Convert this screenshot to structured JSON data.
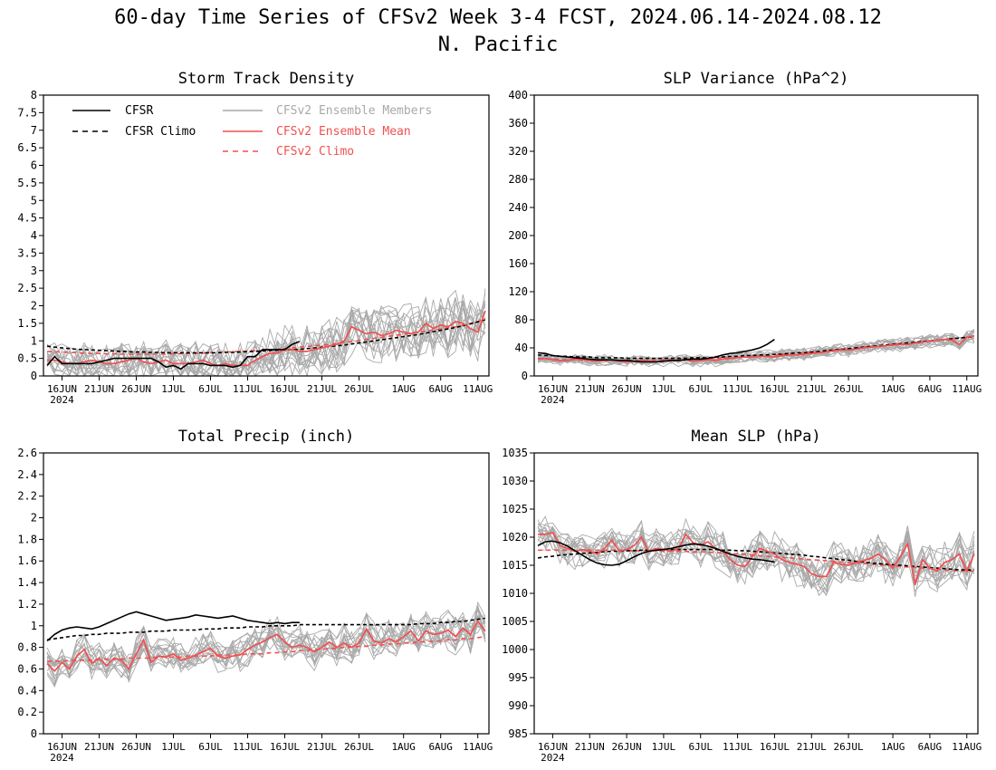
{
  "title": "60-day Time Series of CFSv2 Week 3-4 FCST, 2024.06.14-2024.08.12",
  "subtitle": "N. Pacific",
  "colors": {
    "cfsr": "#000000",
    "members": "#a9a9a9",
    "ens_mean": "#f05050",
    "cfsv2_climo": "#f05050"
  },
  "x_tick_labels": [
    "16JUN",
    "21JUN",
    "26JUN",
    "1JUL",
    "6JUL",
    "11JUL",
    "16JUL",
    "21JUL",
    "26JUL",
    "1AUG",
    "6AUG",
    "11AUG"
  ],
  "x_year_label": "2024",
  "legend": {
    "cfsr": "CFSR",
    "cfsr_climo": "CFSR Climo",
    "members": "CFSv2 Ensemble Members",
    "ens_mean": "CFSv2 Ensemble Mean",
    "cfsv2_climo": "CFSv2 Climo"
  },
  "chart_data": [
    {
      "type": "line",
      "title": "Storm Track Density",
      "x": "day index 0-59 (2024-06-14 to 2024-08-12)",
      "ylim": [
        0,
        8
      ],
      "yticks": [
        "0",
        "0.5",
        "1",
        "1.5",
        "2",
        "2.5",
        "3",
        "3.5",
        "4",
        "4.5",
        "5",
        "5.5",
        "6",
        "6.5",
        "7",
        "7.5",
        "8"
      ],
      "members_count": 16,
      "members_noise": 0.45,
      "members_noise_growth": 0.8,
      "cfsr": [
        0.3,
        0.55,
        0.35,
        0.35,
        0.35,
        0.35,
        0.35,
        0.4,
        0.45,
        0.5,
        0.5,
        0.5,
        0.5,
        0.5,
        0.5,
        0.4,
        0.25,
        0.3,
        0.2,
        0.35,
        0.35,
        0.35,
        0.3,
        0.3,
        0.3,
        0.25,
        0.3,
        0.55,
        0.55,
        0.75,
        0.75,
        0.75,
        0.75,
        0.9,
        0.98
      ],
      "cfsr_climo": [
        0.85,
        0.82,
        0.8,
        0.78,
        0.76,
        0.75,
        0.74,
        0.73,
        0.72,
        0.71,
        0.7,
        0.69,
        0.68,
        0.68,
        0.67,
        0.67,
        0.66,
        0.66,
        0.66,
        0.66,
        0.66,
        0.66,
        0.66,
        0.66,
        0.67,
        0.67,
        0.68,
        0.69,
        0.7,
        0.71,
        0.72,
        0.73,
        0.74,
        0.75,
        0.76,
        0.78,
        0.8,
        0.82,
        0.84,
        0.86,
        0.88,
        0.91,
        0.94,
        0.97,
        1.0,
        1.03,
        1.06,
        1.09,
        1.12,
        1.15,
        1.18,
        1.22,
        1.26,
        1.3,
        1.34,
        1.38,
        1.43,
        1.48,
        1.54,
        1.6
      ],
      "ens_mean": [
        0.45,
        0.45,
        0.4,
        0.35,
        0.35,
        0.4,
        0.45,
        0.4,
        0.35,
        0.35,
        0.4,
        0.45,
        0.5,
        0.4,
        0.35,
        0.4,
        0.45,
        0.35,
        0.35,
        0.35,
        0.4,
        0.45,
        0.35,
        0.3,
        0.35,
        0.3,
        0.3,
        0.3,
        0.45,
        0.55,
        0.65,
        0.65,
        0.75,
        0.75,
        0.7,
        0.7,
        0.75,
        0.8,
        0.85,
        0.9,
        1.0,
        1.4,
        1.3,
        1.2,
        1.25,
        1.15,
        1.2,
        1.3,
        1.25,
        1.2,
        1.25,
        1.5,
        1.35,
        1.45,
        1.4,
        1.55,
        1.5,
        1.35,
        1.25,
        1.85
      ],
      "cfsv2_climo": [
        0.7,
        0.69,
        0.68,
        0.67,
        0.66,
        0.65,
        0.64,
        0.64,
        0.63,
        0.63,
        0.62,
        0.62,
        0.62,
        0.62,
        0.62,
        0.62,
        0.62,
        0.63,
        0.63,
        0.64,
        0.64,
        0.65,
        0.66,
        0.67,
        0.68,
        0.69,
        0.7,
        0.71,
        0.72,
        0.73,
        0.74,
        0.76,
        0.78,
        0.8,
        0.82,
        0.84,
        0.86,
        0.88,
        0.9,
        0.92,
        0.95,
        0.98,
        1.01,
        1.04,
        1.07,
        1.1,
        1.13,
        1.16,
        1.19,
        1.22,
        1.25,
        1.28,
        1.31,
        1.34,
        1.37,
        1.4,
        1.45,
        1.5,
        1.55,
        1.65
      ]
    },
    {
      "type": "line",
      "title": "SLP Variance (hPa^2)",
      "ylim": [
        0,
        400
      ],
      "yticks": [
        "0",
        "40",
        "80",
        "120",
        "160",
        "200",
        "240",
        "280",
        "320",
        "360",
        "400"
      ],
      "members_count": 16,
      "members_noise": 6,
      "members_noise_growth": 0.6,
      "cfsr": [
        33,
        32,
        29,
        28,
        27,
        26,
        25,
        24,
        23,
        23,
        23,
        22,
        22,
        21,
        20,
        20,
        20,
        21,
        22,
        22,
        23,
        24,
        24,
        25,
        27,
        30,
        32,
        33,
        35,
        37,
        40,
        45,
        52
      ],
      "cfsr_climo": [
        30,
        29,
        29,
        28,
        28,
        27,
        27,
        27,
        26,
        26,
        26,
        26,
        25,
        25,
        25,
        25,
        25,
        25,
        25,
        25,
        25,
        26,
        26,
        26,
        27,
        27,
        28,
        28,
        29,
        29,
        30,
        30,
        31,
        31,
        32,
        33,
        33,
        34,
        35,
        36,
        37,
        38,
        39,
        40,
        41,
        42,
        43,
        44,
        45,
        46,
        47,
        48,
        49,
        50,
        51,
        52,
        53,
        54,
        55,
        56
      ],
      "ens_mean": [
        24,
        25,
        23,
        22,
        22,
        24,
        23,
        22,
        21,
        22,
        23,
        21,
        20,
        21,
        22,
        21,
        20,
        21,
        22,
        22,
        23,
        21,
        22,
        23,
        22,
        24,
        25,
        26,
        27,
        27,
        28,
        28,
        27,
        29,
        30,
        30,
        31,
        32,
        33,
        34,
        36,
        37,
        37,
        38,
        40,
        41,
        42,
        43,
        44,
        45,
        45,
        47,
        48,
        50,
        51,
        52,
        51,
        45,
        55,
        57
      ],
      "cfsv2_climo": [
        25,
        24,
        24,
        23,
        23,
        23,
        22,
        22,
        22,
        22,
        22,
        22,
        22,
        22,
        22,
        22,
        22,
        23,
        23,
        23,
        24,
        24,
        24,
        25,
        25,
        26,
        26,
        27,
        27,
        28,
        29,
        29,
        30,
        31,
        32,
        32,
        33,
        34,
        35,
        36,
        37,
        38,
        39,
        40,
        41,
        42,
        43,
        44,
        45,
        46,
        47,
        48,
        49,
        50,
        51,
        52,
        53,
        54,
        55,
        56
      ]
    },
    {
      "type": "line",
      "title": "Total Precip (inch)",
      "ylim": [
        0,
        2.6
      ],
      "yticks": [
        "0",
        "0.2",
        "0.4",
        "0.6",
        "0.8",
        "1",
        "1.2",
        "1.4",
        "1.6",
        "1.8",
        "2",
        "2.2",
        "2.4",
        "2.6"
      ],
      "members_count": 16,
      "members_noise": 0.12,
      "members_noise_growth": 0.3,
      "cfsr": [
        0.86,
        0.92,
        0.96,
        0.98,
        0.99,
        0.98,
        0.97,
        0.99,
        1.02,
        1.05,
        1.08,
        1.11,
        1.13,
        1.11,
        1.09,
        1.07,
        1.05,
        1.06,
        1.07,
        1.08,
        1.1,
        1.09,
        1.08,
        1.07,
        1.08,
        1.09,
        1.07,
        1.05,
        1.04,
        1.03,
        1.02,
        1.03,
        1.02,
        1.03,
        1.03
      ],
      "cfsr_climo": [
        0.87,
        0.88,
        0.89,
        0.9,
        0.91,
        0.91,
        0.92,
        0.92,
        0.93,
        0.93,
        0.93,
        0.94,
        0.94,
        0.94,
        0.95,
        0.95,
        0.95,
        0.96,
        0.96,
        0.96,
        0.96,
        0.97,
        0.97,
        0.97,
        0.98,
        0.98,
        0.98,
        0.99,
        0.99,
        0.99,
        1.0,
        1.0,
        1.0,
        1.0,
        1.01,
        1.01,
        1.01,
        1.01,
        1.01,
        1.01,
        1.01,
        1.01,
        1.01,
        1.01,
        1.01,
        1.01,
        1.01,
        1.01,
        1.01,
        1.01,
        1.02,
        1.02,
        1.02,
        1.03,
        1.03,
        1.04,
        1.04,
        1.05,
        1.06,
        1.07
      ],
      "ens_mean": [
        0.65,
        0.58,
        0.66,
        0.6,
        0.72,
        0.78,
        0.65,
        0.7,
        0.63,
        0.7,
        0.68,
        0.6,
        0.74,
        0.87,
        0.66,
        0.72,
        0.71,
        0.74,
        0.68,
        0.7,
        0.73,
        0.76,
        0.79,
        0.72,
        0.7,
        0.72,
        0.73,
        0.78,
        0.82,
        0.85,
        0.89,
        0.92,
        0.85,
        0.8,
        0.82,
        0.8,
        0.76,
        0.8,
        0.85,
        0.8,
        0.84,
        0.8,
        0.84,
        0.97,
        0.86,
        0.84,
        0.88,
        0.85,
        0.9,
        0.95,
        0.86,
        0.95,
        0.92,
        0.93,
        0.96,
        0.9,
        0.98,
        0.92,
        1.04,
        0.95
      ],
      "cfsv2_climo": [
        0.67,
        0.67,
        0.67,
        0.68,
        0.68,
        0.68,
        0.68,
        0.69,
        0.69,
        0.69,
        0.69,
        0.7,
        0.7,
        0.7,
        0.7,
        0.71,
        0.71,
        0.71,
        0.71,
        0.72,
        0.72,
        0.72,
        0.72,
        0.73,
        0.73,
        0.73,
        0.73,
        0.74,
        0.74,
        0.74,
        0.75,
        0.75,
        0.76,
        0.76,
        0.77,
        0.77,
        0.78,
        0.78,
        0.79,
        0.79,
        0.8,
        0.8,
        0.81,
        0.81,
        0.82,
        0.82,
        0.83,
        0.83,
        0.84,
        0.84,
        0.85,
        0.85,
        0.86,
        0.86,
        0.87,
        0.87,
        0.88,
        0.88,
        0.89,
        0.9
      ]
    },
    {
      "type": "line",
      "title": "Mean SLP (hPa)",
      "ylim": [
        985,
        1035
      ],
      "yticks": [
        "985",
        "990",
        "995",
        "1000",
        "1005",
        "1010",
        "1015",
        "1020",
        "1025",
        "1030",
        "1035"
      ],
      "members_count": 16,
      "members_noise": 2.5,
      "members_noise_growth": 0.5,
      "cfsr": [
        1018.5,
        1019.2,
        1019.3,
        1019.0,
        1018.4,
        1017.6,
        1016.8,
        1016.0,
        1015.4,
        1015.1,
        1015.0,
        1015.2,
        1015.8,
        1016.5,
        1017.1,
        1017.5,
        1017.7,
        1017.8,
        1018.0,
        1018.3,
        1018.6,
        1018.8,
        1018.7,
        1018.4,
        1018.0,
        1017.5,
        1017.0,
        1016.6,
        1016.3,
        1016.1,
        1016.0,
        1015.8,
        1015.6
      ],
      "cfsr_climo": [
        1016.3,
        1016.5,
        1016.6,
        1016.8,
        1016.9,
        1017.0,
        1017.1,
        1017.2,
        1017.3,
        1017.4,
        1017.5,
        1017.5,
        1017.6,
        1017.6,
        1017.7,
        1017.7,
        1017.7,
        1017.8,
        1017.8,
        1017.8,
        1017.8,
        1017.8,
        1017.8,
        1017.8,
        1017.8,
        1017.7,
        1017.7,
        1017.6,
        1017.6,
        1017.5,
        1017.4,
        1017.3,
        1017.2,
        1017.1,
        1017.0,
        1016.9,
        1016.8,
        1016.6,
        1016.5,
        1016.3,
        1016.2,
        1016.0,
        1015.9,
        1015.7,
        1015.6,
        1015.4,
        1015.3,
        1015.2,
        1015.1,
        1015.0,
        1014.9,
        1014.8,
        1014.7,
        1014.6,
        1014.5,
        1014.4,
        1014.3,
        1014.2,
        1014.2,
        1014.1
      ],
      "ens_mean": [
        1020.5,
        1020.5,
        1020.8,
        1018.5,
        1018.0,
        1017.5,
        1017.8,
        1017.5,
        1017.0,
        1018.0,
        1019.5,
        1017.5,
        1017.8,
        1018.5,
        1020.0,
        1017.5,
        1018.0,
        1017.8,
        1017.5,
        1018.0,
        1020.5,
        1019.0,
        1018.5,
        1019.2,
        1018.0,
        1017.5,
        1016.0,
        1015.0,
        1014.8,
        1016.5,
        1018.0,
        1017.5,
        1017.0,
        1016.0,
        1015.5,
        1015.2,
        1014.8,
        1013.5,
        1013.0,
        1013.0,
        1015.5,
        1015.2,
        1015.0,
        1015.5,
        1015.8,
        1016.2,
        1017.0,
        1016.0,
        1014.5,
        1016.5,
        1018.8,
        1011.5,
        1016.0,
        1014.5,
        1014.0,
        1015.5,
        1016.0,
        1017.0,
        1014.0,
        1017.0
      ],
      "cfsv2_climo": [
        1017.7,
        1017.7,
        1017.7,
        1017.7,
        1017.7,
        1017.7,
        1017.7,
        1017.7,
        1017.7,
        1017.7,
        1017.7,
        1017.7,
        1017.6,
        1017.6,
        1017.6,
        1017.6,
        1017.6,
        1017.5,
        1017.5,
        1017.5,
        1017.5,
        1017.4,
        1017.4,
        1017.3,
        1017.3,
        1017.2,
        1017.1,
        1017.0,
        1016.9,
        1016.8,
        1016.7,
        1016.6,
        1016.5,
        1016.4,
        1016.3,
        1016.2,
        1016.1,
        1016.0,
        1015.9,
        1015.8,
        1015.7,
        1015.6,
        1015.5,
        1015.4,
        1015.3,
        1015.2,
        1015.1,
        1015.0,
        1014.9,
        1014.8,
        1014.7,
        1014.6,
        1014.5,
        1014.4,
        1014.3,
        1014.2,
        1014.1,
        1014.0,
        1014.0,
        1013.9
      ]
    }
  ]
}
